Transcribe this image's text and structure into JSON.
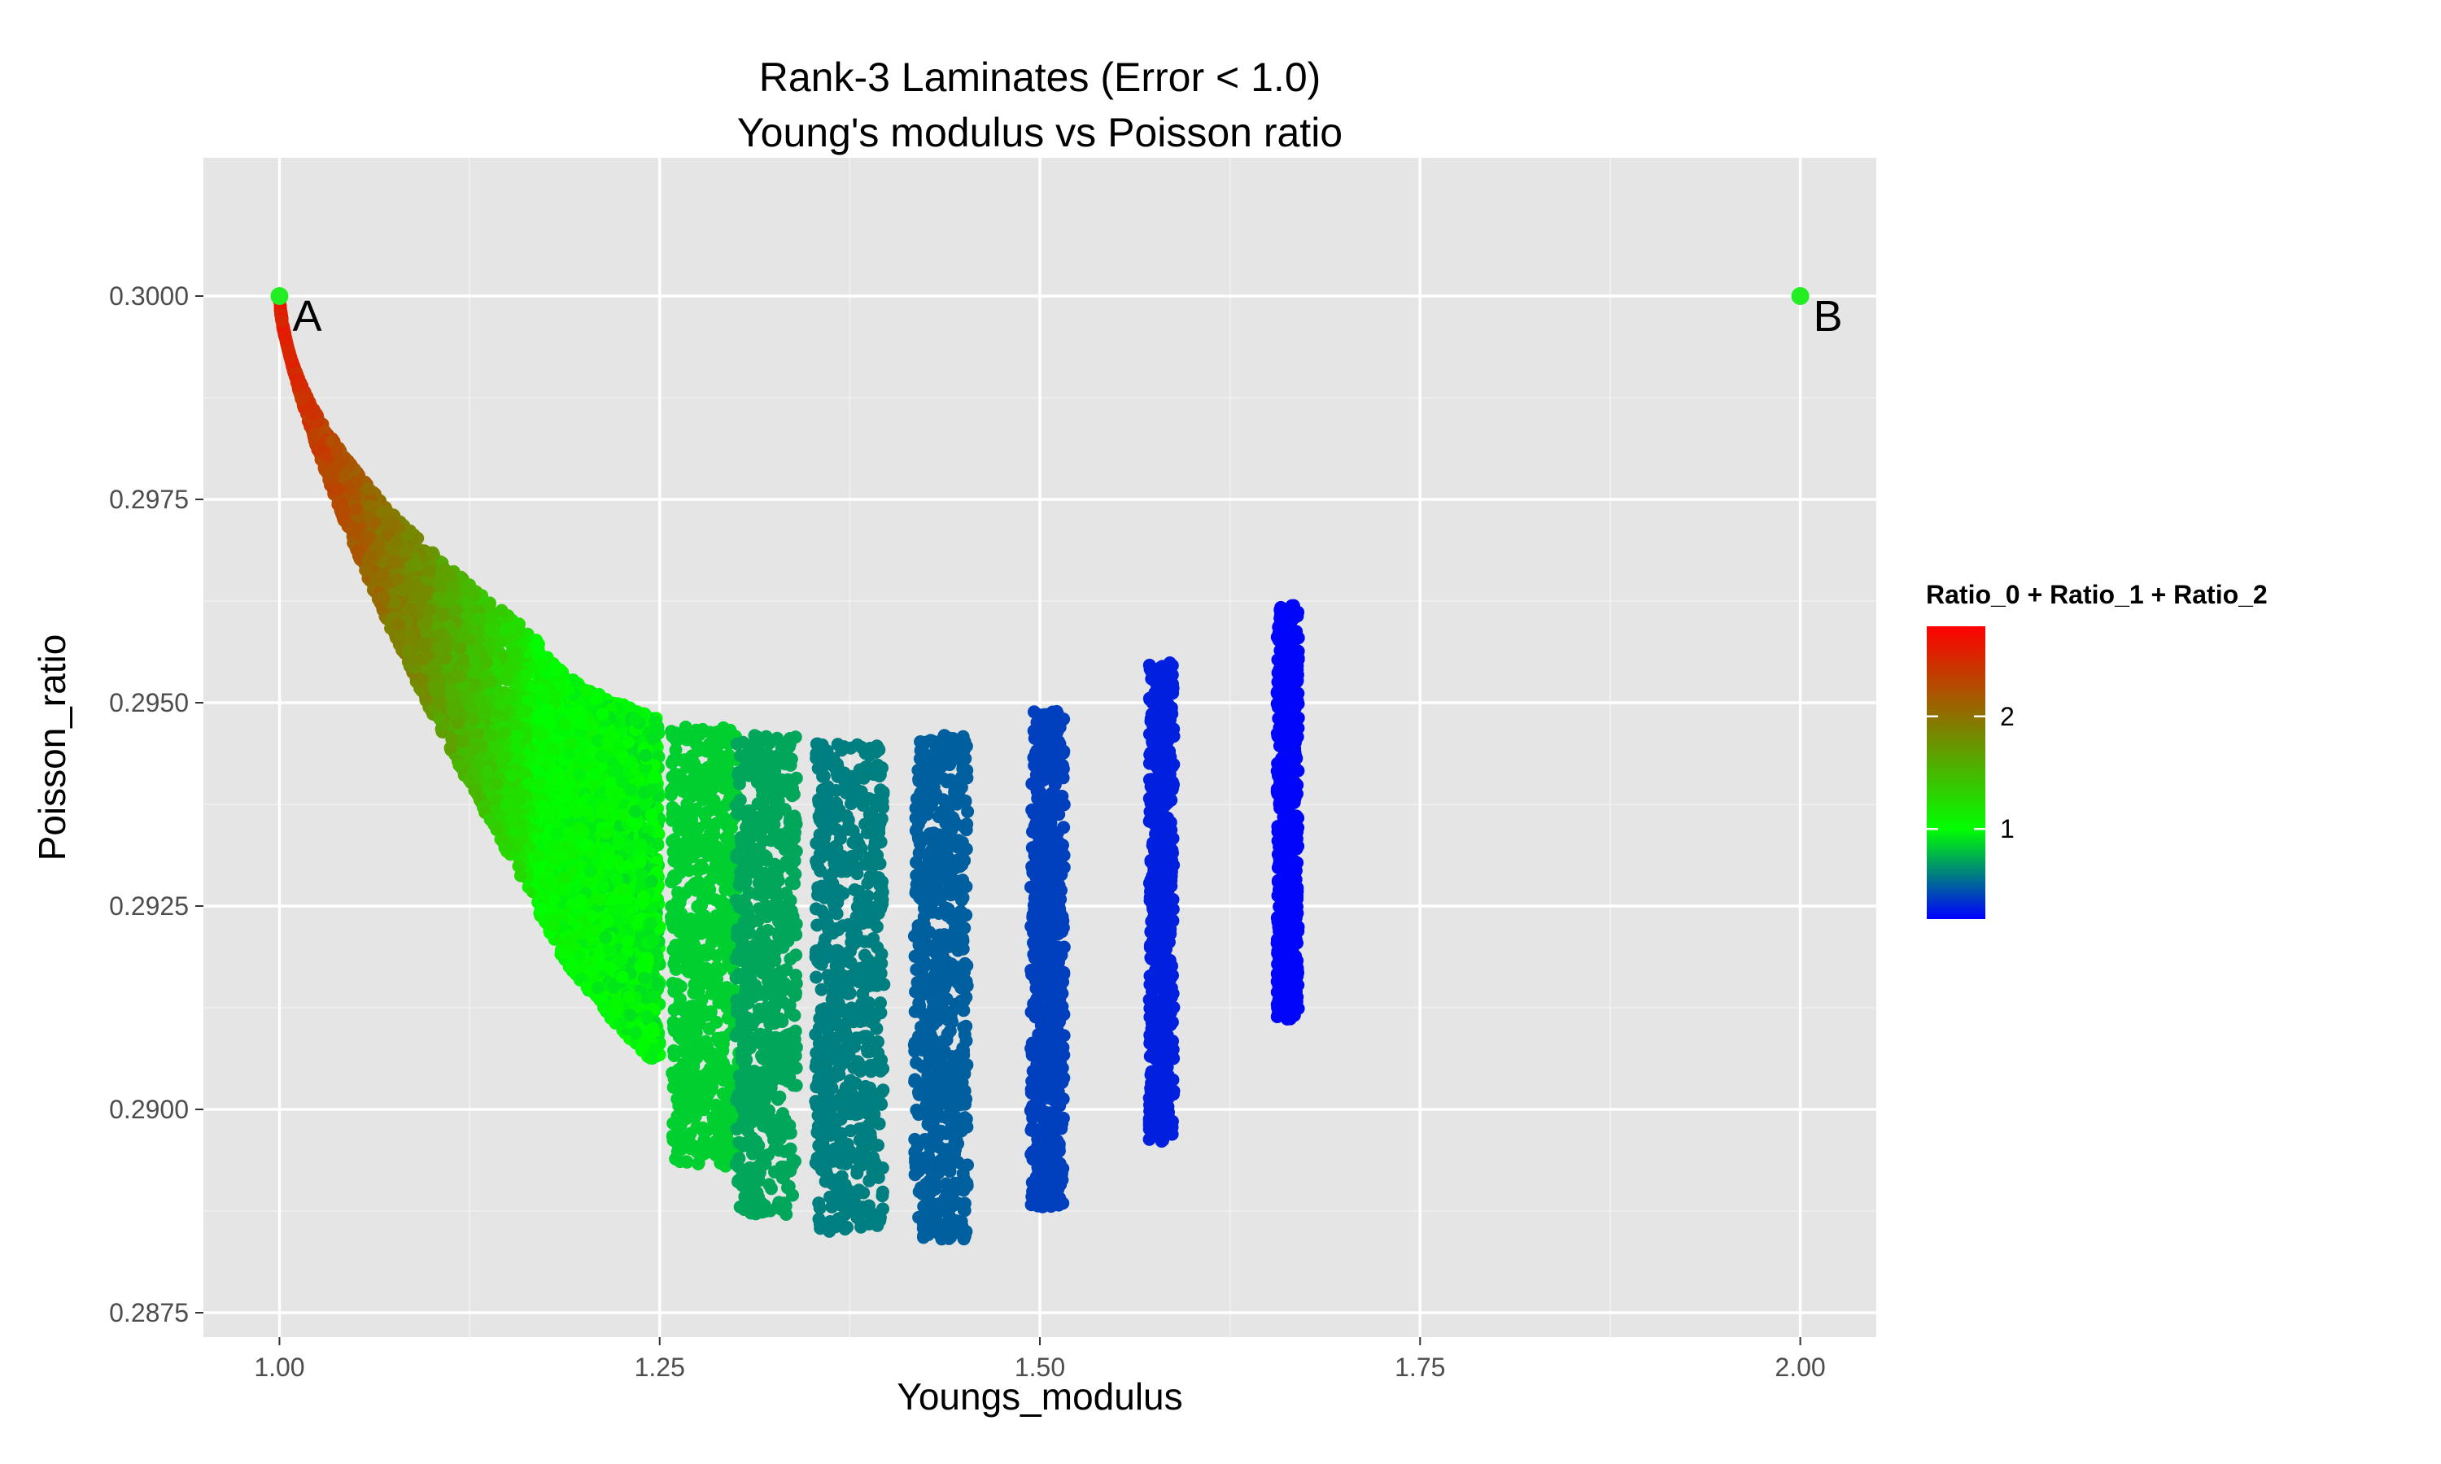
{
  "chart_data": {
    "type": "scatter",
    "title_lines": [
      "Rank-3 Laminates (Error < 1.0)",
      "Young's modulus vs Poisson ratio"
    ],
    "xlabel": "Youngs_modulus",
    "ylabel": "Poisson_ratio",
    "xlim": [
      0.95,
      2.05
    ],
    "ylim": [
      0.2872,
      0.3017
    ],
    "x_ticks": [
      1.0,
      1.25,
      1.5,
      1.75,
      2.0
    ],
    "x_tick_labels": [
      "1.00",
      "1.25",
      "1.50",
      "1.75",
      "2.00"
    ],
    "y_ticks": [
      0.2875,
      0.29,
      0.2925,
      0.295,
      0.2975,
      0.3
    ],
    "y_tick_labels": [
      "0.2875",
      "0.2900",
      "0.2925",
      "0.2950",
      "0.2975",
      "0.3000"
    ],
    "grid": true,
    "color_scale": {
      "title": "Ratio_0 + Ratio_1 + Ratio_2",
      "range": [
        0.2,
        2.8
      ],
      "stops": [
        {
          "value": 0.2,
          "color": "#0000ff"
        },
        {
          "value": 1.0,
          "color": "#00ff00"
        },
        {
          "value": 2.8,
          "color": "#ff0000"
        }
      ],
      "tick_values": [
        1,
        2
      ],
      "tick_labels": [
        "1",
        "2"
      ],
      "legend_position": "right"
    },
    "bands": [
      {
        "x_start": 1.0,
        "x_end": 1.17,
        "y_low_start": 0.3,
        "y_low_end": 0.2925,
        "y_high_start": 0.3,
        "y_high_end": 0.2958,
        "color_start": 2.6,
        "color_end": 1.1
      },
      {
        "x_start": 1.17,
        "x_end": 1.25,
        "y_low_start": 0.2925,
        "y_low_end": 0.2905,
        "y_high_start": 0.2958,
        "y_high_end": 0.2948,
        "color_start": 1.05,
        "color_end": 0.95
      }
    ],
    "clusters": [
      {
        "x": 1.28,
        "width": 0.045,
        "y_min": 0.2893,
        "y_max": 0.2947,
        "color": 0.85
      },
      {
        "x": 1.32,
        "width": 0.04,
        "y_min": 0.2887,
        "y_max": 0.2946,
        "color": 0.72
      },
      {
        "x": 1.375,
        "width": 0.045,
        "y_min": 0.2885,
        "y_max": 0.2945,
        "color": 0.6
      },
      {
        "x": 1.435,
        "width": 0.035,
        "y_min": 0.2884,
        "y_max": 0.2946,
        "color": 0.5
      },
      {
        "x": 1.505,
        "width": 0.022,
        "y_min": 0.2888,
        "y_max": 0.2949,
        "color": 0.4
      },
      {
        "x": 1.58,
        "width": 0.016,
        "y_min": 0.2896,
        "y_max": 0.2955,
        "color": 0.3
      },
      {
        "x": 1.663,
        "width": 0.014,
        "y_min": 0.2911,
        "y_max": 0.2962,
        "color": 0.22
      }
    ],
    "points": [
      {
        "name": "A",
        "x": 1.0,
        "y": 0.3,
        "color": "#22ee22"
      },
      {
        "name": "B",
        "x": 2.0,
        "y": 0.3,
        "color": "#22ee22"
      }
    ]
  }
}
